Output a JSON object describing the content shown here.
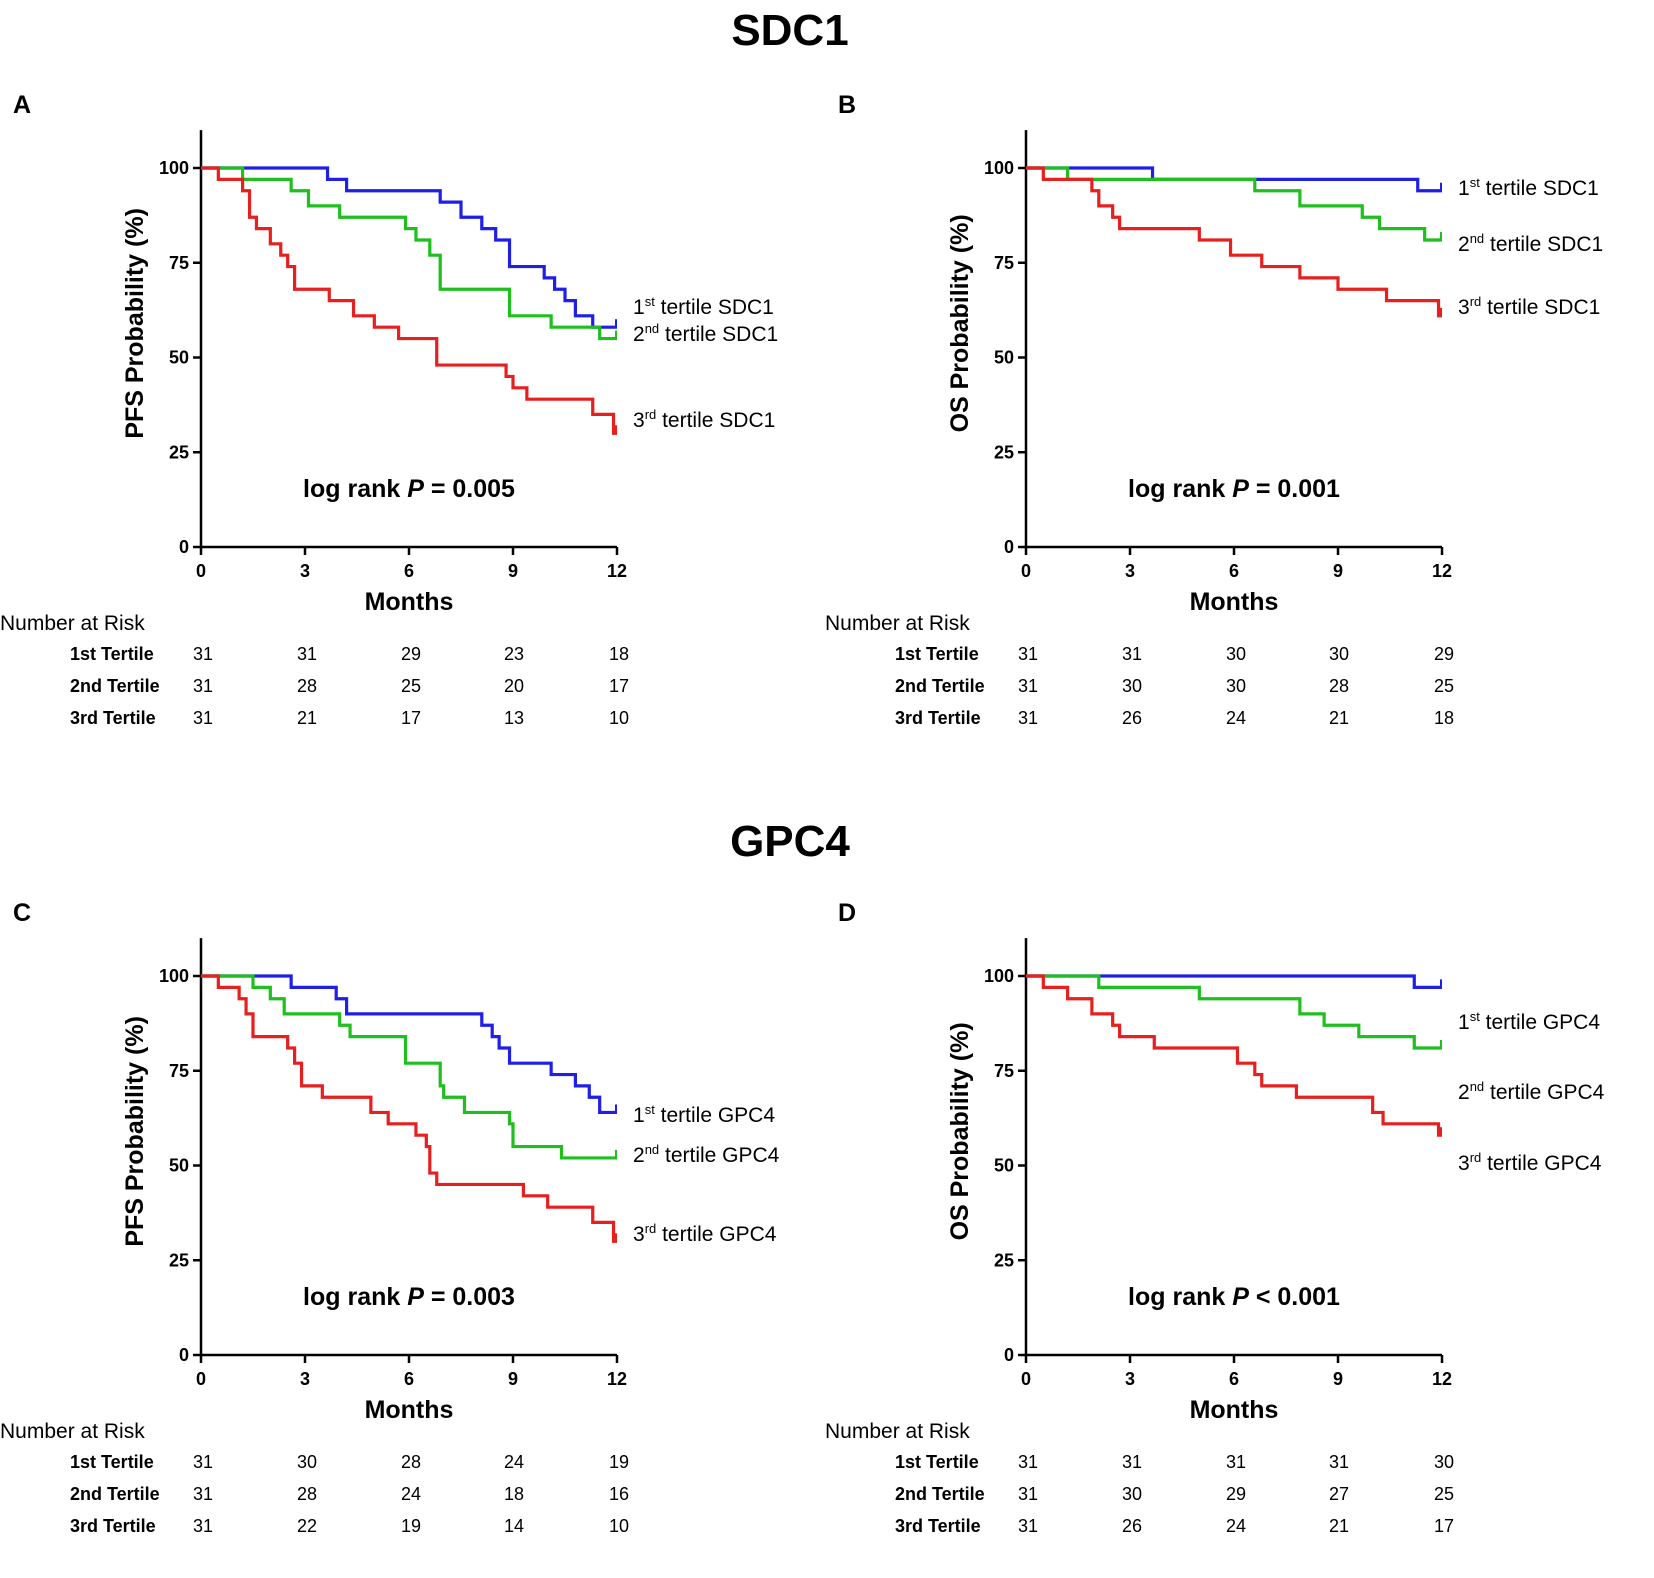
{
  "sections": [
    {
      "title": "SDC1",
      "panels": [
        0,
        1
      ]
    },
    {
      "title": "GPC4",
      "panels": [
        2,
        3
      ]
    }
  ],
  "chart_data": [
    {
      "type": "line",
      "panel": "A",
      "xlabel": "Months",
      "ylabel": "PFS Probability (%)",
      "xlim": [
        0,
        12
      ],
      "ylim": [
        0,
        110
      ],
      "xticks": [
        0,
        3,
        6,
        9,
        12
      ],
      "yticks": [
        0,
        25,
        50,
        75,
        100
      ],
      "annotation": {
        "prefix": "log rank ",
        "p": "P",
        "suffix": " = 0.005"
      },
      "series": [
        {
          "name": "1st tertile SDC1",
          "color": "#1f1fe6",
          "legend": {
            "num": "1",
            "sup": "st",
            "rest": " tertile  SDC1"
          },
          "x": [
            0,
            3.65,
            4.2,
            6.9,
            7.5,
            8.1,
            8.5,
            8.9,
            9.9,
            10.2,
            10.5,
            10.8,
            11.3
          ],
          "y": [
            100,
            97,
            94,
            91,
            87,
            84,
            81,
            74,
            71,
            68,
            65,
            61,
            58
          ]
        },
        {
          "name": "2nd tertile SDC1",
          "color": "#1fbf1f",
          "legend": {
            "num": "2",
            "sup": "nd",
            "rest": " tertile  SDC1"
          },
          "x": [
            0,
            1.2,
            2.6,
            3.1,
            4.0,
            5.9,
            6.2,
            6.6,
            6.9,
            8.9,
            10.1,
            11.5
          ],
          "y": [
            100,
            97,
            94,
            90,
            87,
            84,
            81,
            77,
            68,
            61,
            58,
            55
          ]
        },
        {
          "name": "3rd tertile SDC1",
          "color": "#e61f1f",
          "legend": {
            "num": "3",
            "sup": "rd",
            "rest": " tertile  SDC1"
          },
          "x": [
            0,
            0.5,
            1.2,
            1.4,
            1.6,
            2.0,
            2.3,
            2.5,
            2.7,
            3.7,
            4.4,
            5.0,
            5.7,
            6.8,
            8.8,
            9.0,
            9.4,
            11.3,
            11.9
          ],
          "y": [
            100,
            97,
            94,
            87,
            84,
            80,
            77,
            74,
            68,
            65,
            61,
            58,
            55,
            48,
            45,
            42,
            39,
            35,
            30
          ]
        }
      ],
      "risk_table": {
        "title": "Number at Risk",
        "rows": [
          {
            "label": "1st Tertile",
            "values": [
              31,
              31,
              29,
              23,
              18
            ]
          },
          {
            "label": "2nd Tertile",
            "values": [
              31,
              28,
              25,
              20,
              17
            ]
          },
          {
            "label": "3rd Tertile",
            "values": [
              31,
              21,
              17,
              13,
              10
            ]
          }
        ]
      }
    },
    {
      "type": "line",
      "panel": "B",
      "xlabel": "Months",
      "ylabel": "OS Probability (%)",
      "xlim": [
        0,
        12
      ],
      "ylim": [
        0,
        110
      ],
      "xticks": [
        0,
        3,
        6,
        9,
        12
      ],
      "yticks": [
        0,
        25,
        50,
        75,
        100
      ],
      "annotation": {
        "prefix": "log rank ",
        "p": "P",
        "suffix": " = 0.001"
      },
      "series": [
        {
          "name": "1st tertile SDC1",
          "color": "#1f1fe6",
          "legend": {
            "num": "1",
            "sup": "st",
            "rest": " tertile  SDC1"
          },
          "x": [
            0,
            3.65,
            11.3
          ],
          "y": [
            100,
            97,
            94
          ]
        },
        {
          "name": "2nd tertile SDC1",
          "color": "#1fbf1f",
          "legend": {
            "num": "2",
            "sup": "nd",
            "rest": " tertile  SDC1"
          },
          "x": [
            0,
            1.2,
            6.6,
            7.9,
            9.7,
            10.2,
            11.5
          ],
          "y": [
            100,
            97,
            94,
            90,
            87,
            84,
            81
          ]
        },
        {
          "name": "3rd tertile SDC1",
          "color": "#e61f1f",
          "legend": {
            "num": "3",
            "sup": "rd",
            "rest": " tertile  SDC1"
          },
          "x": [
            0,
            0.5,
            1.9,
            2.1,
            2.5,
            2.7,
            5.0,
            5.9,
            6.8,
            7.9,
            9.0,
            10.4,
            11.9
          ],
          "y": [
            100,
            97,
            94,
            90,
            87,
            84,
            81,
            77,
            74,
            71,
            68,
            65,
            61
          ]
        }
      ],
      "risk_table": {
        "title": "Number at Risk",
        "rows": [
          {
            "label": "1st Tertile",
            "values": [
              31,
              31,
              30,
              30,
              29
            ]
          },
          {
            "label": "2nd Tertile",
            "values": [
              31,
              30,
              30,
              28,
              25
            ]
          },
          {
            "label": "3rd Tertile",
            "values": [
              31,
              26,
              24,
              21,
              18
            ]
          }
        ]
      }
    },
    {
      "type": "line",
      "panel": "C",
      "xlabel": "Months",
      "ylabel": "PFS Probability (%)",
      "xlim": [
        0,
        12
      ],
      "ylim": [
        0,
        110
      ],
      "xticks": [
        0,
        3,
        6,
        9,
        12
      ],
      "yticks": [
        0,
        25,
        50,
        75,
        100
      ],
      "annotation": {
        "prefix": "log rank ",
        "p": "P",
        "suffix": " = 0.003"
      },
      "series": [
        {
          "name": "1st tertile GPC4",
          "color": "#1f1fe6",
          "legend": {
            "num": "1",
            "sup": "st",
            "rest": " tertile  GPC4"
          },
          "x": [
            0,
            2.6,
            3.9,
            4.2,
            8.1,
            8.4,
            8.6,
            8.9,
            10.1,
            10.8,
            11.2,
            11.5
          ],
          "y": [
            100,
            97,
            94,
            90,
            87,
            84,
            81,
            77,
            74,
            71,
            68,
            64
          ]
        },
        {
          "name": "2nd tertile GPC4",
          "color": "#1fbf1f",
          "legend": {
            "num": "2",
            "sup": "nd",
            "rest": " tertile  GPC4"
          },
          "x": [
            0,
            1.5,
            2.0,
            2.4,
            4.0,
            4.3,
            5.9,
            6.9,
            7.0,
            7.6,
            8.9,
            9.0,
            10.4
          ],
          "y": [
            100,
            97,
            94,
            90,
            87,
            84,
            77,
            71,
            68,
            64,
            61,
            55,
            52
          ]
        },
        {
          "name": "3rd tertile GPC4",
          "color": "#e61f1f",
          "legend": {
            "num": "3",
            "sup": "rd",
            "rest": " tertile  GPC4"
          },
          "x": [
            0,
            0.5,
            1.1,
            1.3,
            1.5,
            2.5,
            2.7,
            2.9,
            3.5,
            4.9,
            5.4,
            6.2,
            6.5,
            6.6,
            6.8,
            9.3,
            10.0,
            11.3,
            11.9
          ],
          "y": [
            100,
            97,
            94,
            90,
            84,
            81,
            77,
            71,
            68,
            64,
            61,
            58,
            55,
            48,
            45,
            42,
            39,
            35,
            30
          ]
        }
      ],
      "risk_table": {
        "title": "Number at Risk",
        "rows": [
          {
            "label": "1st Tertile",
            "values": [
              31,
              30,
              28,
              24,
              19
            ]
          },
          {
            "label": "2nd Tertile",
            "values": [
              31,
              28,
              24,
              18,
              16
            ]
          },
          {
            "label": "3rd Tertile",
            "values": [
              31,
              22,
              19,
              14,
              10
            ]
          }
        ]
      }
    },
    {
      "type": "line",
      "panel": "D",
      "xlabel": "Months",
      "ylabel": "OS Probability (%)",
      "xlim": [
        0,
        12
      ],
      "ylim": [
        0,
        110
      ],
      "xticks": [
        0,
        3,
        6,
        9,
        12
      ],
      "yticks": [
        0,
        25,
        50,
        75,
        100
      ],
      "annotation": {
        "prefix": "log rank ",
        "p": "P",
        "suffix": " < 0.001"
      },
      "series": [
        {
          "name": "1st tertile GPC4",
          "color": "#1f1fe6",
          "legend": {
            "num": "1",
            "sup": "st",
            "rest": " tertile  GPC4"
          },
          "x": [
            0,
            11.2
          ],
          "y": [
            100,
            97
          ]
        },
        {
          "name": "2nd tertile GPC4",
          "color": "#1fbf1f",
          "legend": {
            "num": "2",
            "sup": "nd",
            "rest": " tertile  GPC4"
          },
          "x": [
            0,
            2.1,
            5.0,
            7.9,
            8.6,
            9.6,
            11.2
          ],
          "y": [
            100,
            97,
            94,
            90,
            87,
            84,
            81
          ]
        },
        {
          "name": "3rd tertile GPC4",
          "color": "#e61f1f",
          "legend": {
            "num": "3",
            "sup": "rd",
            "rest": " tertile  GPC4"
          },
          "x": [
            0,
            0.5,
            1.2,
            1.9,
            2.5,
            2.7,
            3.7,
            6.1,
            6.6,
            6.8,
            7.8,
            10.0,
            10.3,
            11.9
          ],
          "y": [
            100,
            97,
            94,
            90,
            87,
            84,
            81,
            77,
            74,
            71,
            68,
            64,
            61,
            58
          ]
        }
      ],
      "risk_table": {
        "title": "Number at Risk",
        "rows": [
          {
            "label": "1st Tertile",
            "values": [
              31,
              31,
              31,
              31,
              30
            ]
          },
          {
            "label": "2nd Tertile",
            "values": [
              31,
              30,
              29,
              27,
              25
            ]
          },
          {
            "label": "3rd Tertile",
            "values": [
              31,
              26,
              24,
              21,
              17
            ]
          }
        ]
      }
    }
  ]
}
